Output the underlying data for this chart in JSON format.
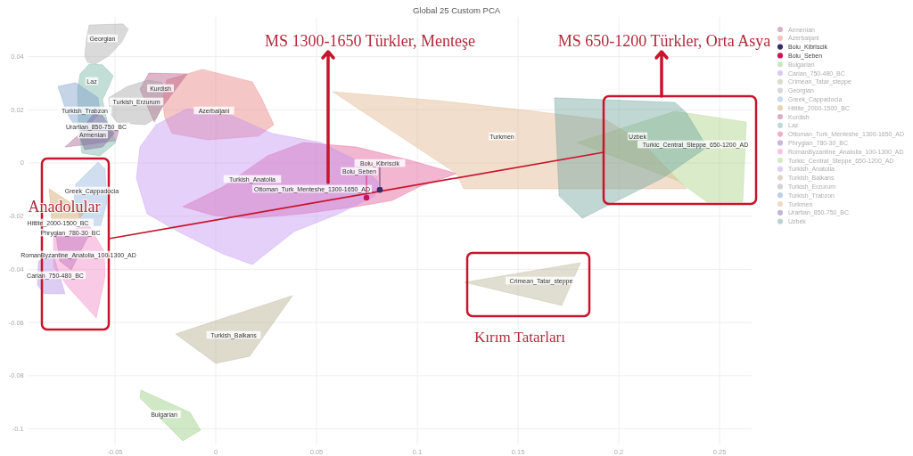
{
  "chart_data": {
    "type": "area",
    "title": "Global 25 Custom PCA",
    "xlim": [
      -0.093,
      0.266
    ],
    "ylim": [
      -0.106,
      0.055
    ],
    "xticks": [
      -0.05,
      0,
      0.05,
      0.1,
      0.15,
      0.2,
      0.25
    ],
    "yticks": [
      -0.1,
      -0.08,
      -0.06,
      -0.04,
      -0.02,
      0,
      0.02,
      0.04
    ],
    "grid": true,
    "legend": "right",
    "series": [
      {
        "name": "Armenian",
        "color": "#a05a8a",
        "x": [
          -0.0748,
          -0.065,
          -0.0482,
          -0.0496,
          -0.0628
        ],
        "values": [
          0.006,
          0.0127,
          0.0121,
          0.0084,
          0.007
        ]
      },
      {
        "name": "Azerbaijani",
        "color": "#e87878",
        "x": [
          -0.0243,
          -0.0066,
          0.0181,
          0.0226,
          0.0288,
          0.0212,
          -0.004,
          -0.0217,
          -0.0252,
          -0.0265
        ],
        "values": [
          0.0312,
          0.0352,
          0.0305,
          0.0245,
          0.0144,
          0.0101,
          0.0087,
          0.0111,
          0.0168,
          0.0235
        ]
      },
      {
        "name": "Bolu_Kibriscik",
        "type": "scatter",
        "marker": "circle",
        "color": "#3a2a6a",
        "x": [
          0.0814
        ],
        "values": [
          -0.0101
        ]
      },
      {
        "name": "Bolu_Seben",
        "type": "scatter",
        "marker": "circle",
        "color": "#d0105a",
        "x": [
          0.0748
        ],
        "values": [
          -0.0131
        ]
      },
      {
        "name": "Bulgarian",
        "color": "#90c878",
        "x": [
          -0.0372,
          -0.0128,
          -0.0075,
          -0.0164,
          -0.0376
        ],
        "values": [
          -0.0854,
          -0.0938,
          -0.1005,
          -0.1045,
          -0.0884
        ]
      },
      {
        "name": "Carian_750-480_BC",
        "color": "#b088e0",
        "x": [
          -0.088,
          -0.0805,
          -0.0748,
          -0.085,
          -0.0885
        ],
        "values": [
          -0.0369,
          -0.0348,
          -0.0492,
          -0.0492,
          -0.0459
        ]
      },
      {
        "name": "Crimean_Tatar_steppe",
        "color": "#b4b090",
        "x": [
          0.1235,
          0.181,
          0.1717
        ],
        "values": [
          -0.0449,
          -0.0375,
          -0.0536
        ]
      },
      {
        "name": "Georgian",
        "color": "#a8a8a8",
        "x": [
          -0.0628,
          -0.046,
          -0.0434,
          -0.0465,
          -0.0527,
          -0.0597,
          -0.0637,
          -0.065,
          -0.0642
        ],
        "values": [
          0.0519,
          0.0523,
          0.0503,
          0.0456,
          0.0405,
          0.0372,
          0.0379,
          0.0402,
          0.0469
        ]
      },
      {
        "name": "Greek_Cappadocia",
        "color": "#90b0d8",
        "x": [
          -0.0695,
          -0.0584,
          -0.0549,
          -0.054,
          -0.0571,
          -0.0659,
          -0.0704
        ],
        "values": [
          -0.008,
          0.0003,
          -0.0023,
          -0.0147,
          -0.0235,
          -0.0235,
          -0.0147
        ]
      },
      {
        "name": "Hittite_2000-1500_BC",
        "color": "#d0a060",
        "x": [
          -0.0827,
          -0.065,
          -0.0695,
          -0.0814
        ],
        "values": [
          -0.0097,
          -0.0184,
          -0.0224,
          -0.0218
        ]
      },
      {
        "name": "Kurdish",
        "color": "#b05080",
        "x": [
          -0.0332,
          -0.0142,
          -0.0221,
          -0.0265,
          -0.0305,
          -0.0332,
          -0.0376
        ],
        "values": [
          0.0338,
          0.0335,
          0.0255,
          0.0211,
          0.0154,
          0.0201,
          0.0278
        ]
      },
      {
        "name": "Laz",
        "color": "#70b0a0",
        "x": [
          -0.0628,
          -0.0562,
          -0.0509,
          -0.0531,
          -0.0562,
          -0.054,
          -0.0496,
          -0.0575,
          -0.0664,
          -0.0681,
          -0.0686,
          -0.0673
        ],
        "values": [
          0.0372,
          0.0369,
          0.0328,
          0.0288,
          0.0238,
          0.0161,
          0.0077,
          0.0027,
          0.0037,
          0.0144,
          0.0278,
          0.0335
        ]
      },
      {
        "name": "Ottoman_Turk_Menteshe_1300-1650_AD",
        "color": "#e05090",
        "x": [
          -0.0164,
          0.0035,
          0.0257,
          0.0434,
          0.0699,
          0.0965,
          0.1195,
          0.1009,
          0.0876,
          0.0699,
          0.0434,
          0.0168,
          -0.0009
        ],
        "values": [
          -0.0164,
          -0.009,
          0.0027,
          0.0077,
          0.006,
          0.001,
          -0.004,
          -0.009,
          -0.0141,
          -0.0164,
          -0.0191,
          -0.0208,
          -0.0198
        ]
      },
      {
        "name": "Phrygian_780-30_BC",
        "color": "#9060b0",
        "x": [
          -0.0792,
          -0.0628,
          -0.0717,
          -0.0774
        ],
        "values": [
          -0.0275,
          -0.0268,
          -0.0402,
          -0.0369
        ]
      },
      {
        "name": "RomanByzantine_Anatolia_100-1300_AD",
        "color": "#f080c0",
        "x": [
          -0.0805,
          -0.0628,
          -0.0553,
          -0.0549,
          -0.0593,
          -0.073,
          -0.0805
        ],
        "values": [
          -0.0268,
          -0.0235,
          -0.0335,
          -0.0425,
          -0.0583,
          -0.0469,
          -0.0392
        ]
      },
      {
        "name": "Turkic_Central_Steppe_650-1200_AD",
        "color": "#a8d080",
        "x": [
          0.1792,
          0.2279,
          0.2633,
          0.2615,
          0.2438,
          0.2292
        ],
        "values": [
          0.0077,
          0.0194,
          0.0154,
          -0.0147,
          -0.0147,
          -0.0067
        ]
      },
      {
        "name": "Turkish_Anatolia",
        "color": "#c090f0",
        "x": [
          -0.0376,
          -0.0296,
          -0.0142,
          0.008,
          0.0279,
          0.0522,
          0.0699,
          0.081,
          0.0788,
          0.0611,
          0.0389,
          0.0181,
          0.0035,
          -0.0186,
          -0.0341,
          -0.0394
        ],
        "values": [
          0.006,
          0.0144,
          0.0204,
          0.0178,
          0.0111,
          0.0077,
          0.001,
          -0.0074,
          -0.0124,
          -0.0191,
          -0.0258,
          -0.0382,
          -0.0342,
          -0.0258,
          -0.0191,
          -0.0057
        ]
      },
      {
        "name": "Turkish_Balkans",
        "color": "#b0aa88",
        "x": [
          -0.0199,
          0.0381,
          0.0168,
          0
        ],
        "values": [
          -0.0643,
          -0.0499,
          -0.0727,
          -0.0754
        ]
      },
      {
        "name": "Turkish_Erzurum",
        "color": "#a0a0a0",
        "x": [
          -0.0531,
          -0.0438,
          -0.0332,
          -0.0265,
          -0.0261,
          -0.0296,
          -0.035,
          -0.0487,
          -0.0527
        ],
        "values": [
          0.0245,
          0.0288,
          0.0312,
          0.0302,
          0.0221,
          0.0168,
          0.0144,
          0.0151,
          0.0188
        ]
      },
      {
        "name": "Turkish_Trabzon",
        "color": "#7898c8",
        "x": [
          -0.0783,
          -0.0695,
          -0.0584,
          -0.0575,
          -0.0628,
          -0.0704,
          -0.0739
        ],
        "values": [
          0.0288,
          0.0302,
          0.0245,
          0.0188,
          0.0144,
          0.0144,
          0.0188
        ]
      },
      {
        "name": "Turkmen",
        "color": "#e0b088",
        "x": [
          0.058,
          0.1097,
          0.1584,
          0.1938,
          0.2115,
          0.2336,
          0.123,
          0.1195
        ],
        "values": [
          0.0268,
          0.0235,
          0.0194,
          0.0161,
          0.0077,
          -0.0097,
          -0.0097,
          -0.004
        ]
      },
      {
        "name": "Urartian_850-750_BC",
        "color": "#8060a0",
        "x": [
          -0.0681,
          -0.0606,
          -0.0562,
          -0.0504,
          -0.0562,
          -0.065
        ],
        "values": [
          0.0111,
          0.0184,
          0.0178,
          0.0111,
          0.006,
          0.005
        ]
      },
      {
        "name": "Uzbek",
        "color": "#6aa098",
        "x": [
          0.1681,
          0.2279,
          0.2336,
          0.2438,
          0.2217,
          0.1819,
          0.1704
        ],
        "values": [
          0.0245,
          0.0228,
          0.0188,
          0.006,
          -0.0057,
          -0.0208,
          -0.0124
        ]
      }
    ],
    "annotations": [
      "MS 1300-1650 Türkler, Menteşe",
      "MS 650-1200 Türkler, Orta Asya",
      "Anadolular",
      "Kırım Tatarları"
    ]
  }
}
